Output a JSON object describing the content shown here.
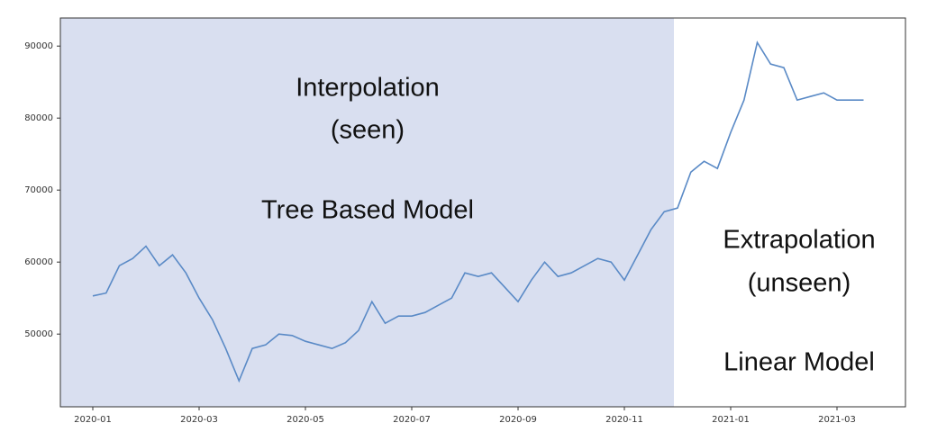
{
  "chart_data": {
    "type": "line",
    "annotations": [
      "Interpolation",
      "(seen)",
      "Tree Based Model",
      "Extrapolation",
      "(unseen)",
      "Linear Model"
    ],
    "categories": [
      "2020-01",
      null,
      null,
      null,
      null,
      null,
      null,
      null,
      "2020-03",
      null,
      null,
      null,
      null,
      null,
      null,
      null,
      "2020-05",
      null,
      null,
      null,
      null,
      null,
      null,
      null,
      "2020-07",
      null,
      null,
      null,
      null,
      null,
      null,
      null,
      "2020-09",
      null,
      null,
      null,
      null,
      null,
      null,
      null,
      "2020-11",
      null,
      null,
      null,
      null,
      null,
      null,
      null,
      "2021-01",
      null,
      null,
      null,
      null,
      null,
      null,
      null,
      "2021-03",
      null,
      null
    ],
    "series": [
      {
        "color": "#5a8ac6",
        "values": [
          55300,
          55700,
          59500,
          60500,
          62200,
          59500,
          61000,
          58500,
          55000,
          52000,
          48000,
          43500,
          48000,
          48500,
          50000,
          49800,
          49000,
          48500,
          48000,
          48800,
          50500,
          54500,
          51500,
          52500,
          52500,
          53000,
          54000,
          55000,
          58500,
          58000,
          58500,
          56500,
          54500,
          57500,
          60000,
          58000,
          58500,
          59500,
          60500,
          60000,
          57500,
          61000,
          64500,
          67000,
          67500,
          72500,
          74000,
          73000,
          78000,
          82500,
          90500,
          87500,
          87000,
          82500,
          83000,
          83500,
          82500,
          82500,
          82500
        ]
      }
    ],
    "ylim": [
      39900,
      93900
    ],
    "yticks": [
      50000,
      60000,
      70000,
      80000,
      90000
    ],
    "shade_color": "#d9dff0",
    "grid": false
  }
}
